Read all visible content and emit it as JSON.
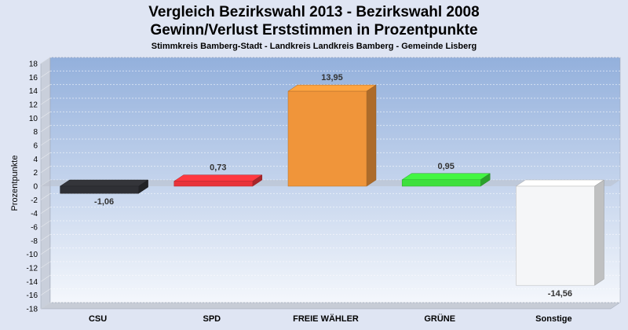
{
  "chart_data": {
    "type": "bar",
    "title": "Vergleich Bezirkswahl 2013 - Bezirkswahl 2008",
    "title2": "Gewinn/Verlust Erststimmen in Prozentpunkte",
    "subtitle": "Stimmkreis Bamberg-Stadt - Landkreis Landkreis Bamberg - Gemeinde Lisberg",
    "ylabel": "Prozentpunkte",
    "xlabel": "",
    "ylim": [
      -18,
      18
    ],
    "yticks": [
      18,
      16,
      14,
      12,
      10,
      8,
      6,
      4,
      2,
      0,
      -2,
      -4,
      -6,
      -8,
      -10,
      -12,
      -14,
      -16,
      -18
    ],
    "categories": [
      "CSU",
      "SPD",
      "FREIE WÄHLER",
      "GRÜNE",
      "Sonstige"
    ],
    "values": [
      -1.06,
      0.73,
      13.95,
      0.95,
      -14.56
    ],
    "value_labels": [
      "-1,06",
      "0,73",
      "13,95",
      "0,95",
      "-14,56"
    ],
    "colors": [
      "#2f3035",
      "#e8333a",
      "#f0953a",
      "#3de03d",
      "#f5f6f8"
    ],
    "grid": true,
    "style": "3d"
  }
}
